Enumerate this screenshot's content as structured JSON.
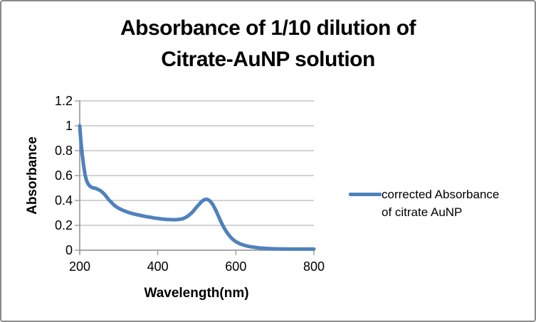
{
  "chart": {
    "title_lines": [
      "Absorbance of 1/10 dilution of",
      "Citrate-AuNP solution"
    ],
    "y_axis_title": "Absorbance",
    "x_axis_title": "Wavelength(nm)",
    "legend": {
      "lines": [
        "corrected Absorbance",
        "of citrate AuNP"
      ]
    },
    "colors": {
      "line": "#4F81BD",
      "gridline": "#A6A6A6",
      "axis": "#8C8C8C",
      "border": "#8A8A8A",
      "text": "#000000",
      "background": "#FFFFFF"
    }
  },
  "chart_data": {
    "type": "line",
    "title": "Absorbance of 1/10 dilution of Citrate-AuNP solution",
    "xlabel": "Wavelength(nm)",
    "ylabel": "Absorbance",
    "xlim": [
      200,
      800
    ],
    "ylim": [
      0,
      1.2
    ],
    "x_ticks": [
      200,
      400,
      600,
      800
    ],
    "y_ticks": [
      0,
      0.2,
      0.4,
      0.6,
      0.8,
      1,
      1.2
    ],
    "grid": true,
    "legend_position": "right",
    "series": [
      {
        "name": "corrected Absorbance of citrate AuNP",
        "color": "#4F81BD",
        "points": [
          [
            200,
            1.0
          ],
          [
            203,
            0.88
          ],
          [
            206,
            0.78
          ],
          [
            210,
            0.68
          ],
          [
            214,
            0.6
          ],
          [
            218,
            0.555
          ],
          [
            222,
            0.53
          ],
          [
            226,
            0.515
          ],
          [
            231,
            0.505
          ],
          [
            236,
            0.5
          ],
          [
            241,
            0.497
          ],
          [
            246,
            0.49
          ],
          [
            251,
            0.482
          ],
          [
            256,
            0.472
          ],
          [
            261,
            0.458
          ],
          [
            266,
            0.44
          ],
          [
            271,
            0.42
          ],
          [
            276,
            0.4
          ],
          [
            281,
            0.385
          ],
          [
            286,
            0.368
          ],
          [
            291,
            0.355
          ],
          [
            296,
            0.345
          ],
          [
            301,
            0.335
          ],
          [
            311,
            0.32
          ],
          [
            321,
            0.308
          ],
          [
            331,
            0.298
          ],
          [
            341,
            0.29
          ],
          [
            351,
            0.283
          ],
          [
            361,
            0.276
          ],
          [
            371,
            0.27
          ],
          [
            381,
            0.265
          ],
          [
            391,
            0.259
          ],
          [
            401,
            0.255
          ],
          [
            411,
            0.251
          ],
          [
            421,
            0.248
          ],
          [
            431,
            0.246
          ],
          [
            441,
            0.245
          ],
          [
            451,
            0.246
          ],
          [
            461,
            0.251
          ],
          [
            466,
            0.256
          ],
          [
            471,
            0.263
          ],
          [
            476,
            0.272
          ],
          [
            481,
            0.284
          ],
          [
            486,
            0.298
          ],
          [
            491,
            0.315
          ],
          [
            496,
            0.333
          ],
          [
            501,
            0.352
          ],
          [
            506,
            0.37
          ],
          [
            511,
            0.387
          ],
          [
            516,
            0.4
          ],
          [
            521,
            0.408
          ],
          [
            526,
            0.409
          ],
          [
            531,
            0.402
          ],
          [
            536,
            0.388
          ],
          [
            541,
            0.366
          ],
          [
            546,
            0.338
          ],
          [
            551,
            0.305
          ],
          [
            556,
            0.27
          ],
          [
            561,
            0.235
          ],
          [
            566,
            0.203
          ],
          [
            571,
            0.174
          ],
          [
            576,
            0.148
          ],
          [
            581,
            0.126
          ],
          [
            586,
            0.107
          ],
          [
            591,
            0.091
          ],
          [
            596,
            0.078
          ],
          [
            601,
            0.067
          ],
          [
            611,
            0.051
          ],
          [
            621,
            0.04
          ],
          [
            631,
            0.032
          ],
          [
            641,
            0.026
          ],
          [
            651,
            0.022
          ],
          [
            661,
            0.018
          ],
          [
            671,
            0.016
          ],
          [
            681,
            0.014
          ],
          [
            691,
            0.012
          ],
          [
            701,
            0.011
          ],
          [
            721,
            0.01
          ],
          [
            741,
            0.009
          ],
          [
            761,
            0.009
          ],
          [
            781,
            0.009
          ],
          [
            800,
            0.009
          ]
        ]
      }
    ]
  }
}
